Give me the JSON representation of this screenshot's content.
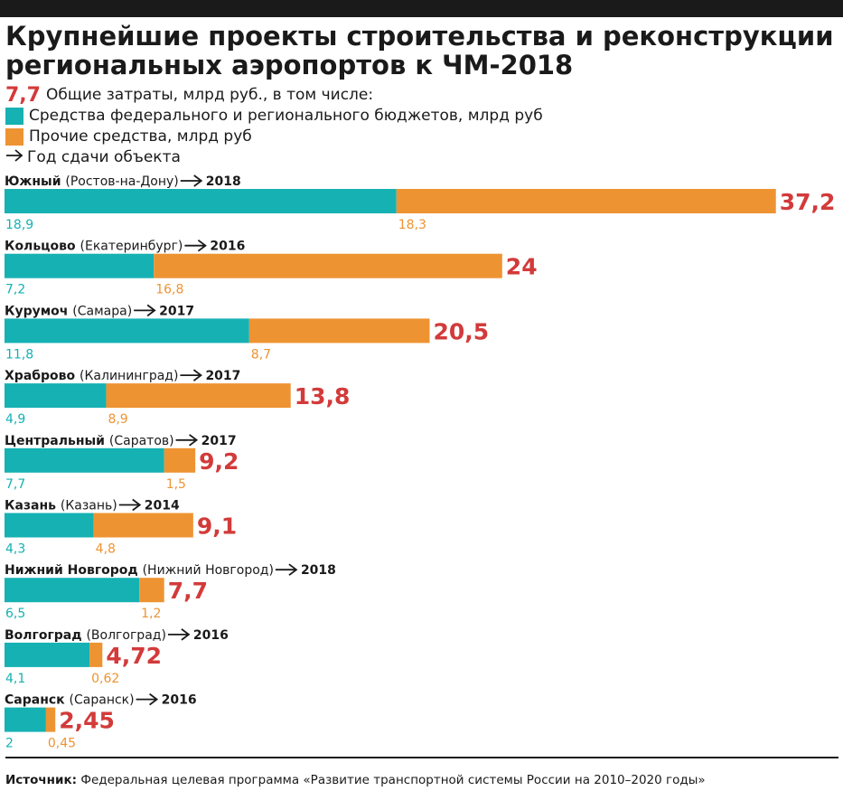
{
  "title": "Крупнейшие проекты строительства и реконструкции региональных аэропортов к ЧМ-2018",
  "legend": {
    "total_example_value": "7,7",
    "total_label": "Общие затраты, млрд руб., в том числе:",
    "federal_label": "Средства федерального и регионального бюджетов, млрд руб",
    "other_label": "Прочие средства, млрд руб",
    "year_label": "Год сдачи объекта",
    "arrow_icon": "right-arrow-icon"
  },
  "colors": {
    "federal": "#16b1b3",
    "other": "#ee9332",
    "total": "#d33a3a",
    "text": "#1a1a1a"
  },
  "source": {
    "prefix": "Источник:",
    "text": "Федеральная целевая программа «Развитие транспортной системы России на 2010–2020 годы»"
  },
  "chart_data": {
    "type": "bar",
    "orientation": "horizontal",
    "stacked": true,
    "title": "Крупнейшие проекты строительства и реконструкции региональных аэропортов к ЧМ-2018",
    "xlabel": "",
    "ylabel": "",
    "unit": "млрд руб.",
    "grid": false,
    "legend_position": "top-left",
    "series": [
      {
        "name": "Средства федерального и регионального бюджетов, млрд руб",
        "color": "#16b1b3",
        "values": [
          18.9,
          7.2,
          11.8,
          4.9,
          7.7,
          4.3,
          6.5,
          4.1,
          2
        ]
      },
      {
        "name": "Прочие средства, млрд руб",
        "color": "#ee9332",
        "values": [
          18.3,
          16.8,
          8.7,
          8.9,
          1.5,
          4.8,
          1.2,
          0.62,
          0.45
        ]
      }
    ],
    "items": [
      {
        "name": "Южный",
        "city": "(Ростов-на-Дону)",
        "year": "2018",
        "federal": 18.9,
        "other": 18.3,
        "total": 37.2,
        "federal_label": "18,9",
        "other_label": "18,3",
        "total_label": "37,2"
      },
      {
        "name": "Кольцово",
        "city": "(Екатеринбург)",
        "year": "2016",
        "federal": 7.2,
        "other": 16.8,
        "total": 24,
        "federal_label": "7,2",
        "other_label": "16,8",
        "total_label": "24"
      },
      {
        "name": "Курумоч",
        "city": "(Самара)",
        "year": "2017",
        "federal": 11.8,
        "other": 8.7,
        "total": 20.5,
        "federal_label": "11,8",
        "other_label": "8,7",
        "total_label": "20,5"
      },
      {
        "name": "Храброво",
        "city": "(Калининград)",
        "year": "2017",
        "federal": 4.9,
        "other": 8.9,
        "total": 13.8,
        "federal_label": "4,9",
        "other_label": "8,9",
        "total_label": "13,8"
      },
      {
        "name": "Центральный",
        "city": "(Саратов)",
        "year": "2017",
        "federal": 7.7,
        "other": 1.5,
        "total": 9.2,
        "federal_label": "7,7",
        "other_label": "1,5",
        "total_label": "9,2"
      },
      {
        "name": "Казань",
        "city": "(Казань)",
        "year": "2014",
        "federal": 4.3,
        "other": 4.8,
        "total": 9.1,
        "federal_label": "4,3",
        "other_label": "4,8",
        "total_label": "9,1"
      },
      {
        "name": "Нижний Новгород",
        "city": "(Нижний Новгород)",
        "year": "2018",
        "federal": 6.5,
        "other": 1.2,
        "total": 7.7,
        "federal_label": "6,5",
        "other_label": "1,2",
        "total_label": "7,7"
      },
      {
        "name": "Волгоград",
        "city": "(Волгоград)",
        "year": "2016",
        "federal": 4.1,
        "other": 0.62,
        "total": 4.72,
        "federal_label": "4,1",
        "other_label": "0,62",
        "total_label": "4,72"
      },
      {
        "name": "Саранск",
        "city": "(Саранск)",
        "year": "2016",
        "federal": 2,
        "other": 0.45,
        "total": 2.45,
        "federal_label": "2",
        "other_label": "0,45",
        "total_label": "2,45"
      }
    ]
  }
}
